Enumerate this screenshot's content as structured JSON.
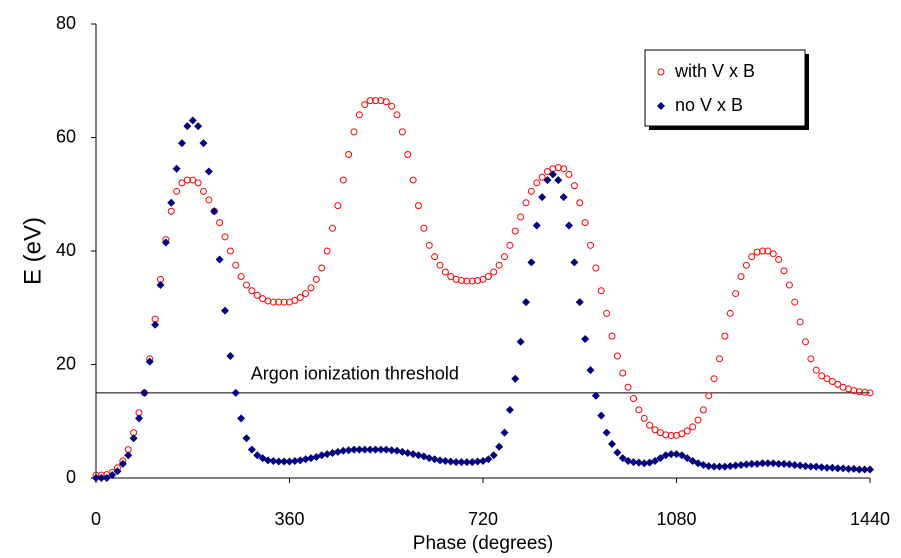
{
  "chart_data": {
    "type": "scatter",
    "xlabel": "Phase (degrees)",
    "ylabel": "E (eV)",
    "xlim": [
      0,
      1440
    ],
    "xticks": [
      0,
      360,
      720,
      1080,
      1440
    ],
    "ylim": [
      0,
      80
    ],
    "yticks": [
      0,
      20,
      40,
      60,
      80
    ],
    "legend": "upper right",
    "threshold": {
      "value": 15,
      "label": "Argon ionization threshold"
    },
    "x": [
      0,
      10,
      20,
      30,
      40,
      50,
      60,
      70,
      80,
      90,
      100,
      110,
      120,
      130,
      140,
      150,
      160,
      170,
      180,
      190,
      200,
      210,
      220,
      230,
      240,
      250,
      260,
      270,
      280,
      290,
      300,
      310,
      320,
      330,
      340,
      350,
      360,
      370,
      380,
      390,
      400,
      410,
      420,
      430,
      440,
      450,
      460,
      470,
      480,
      490,
      500,
      510,
      520,
      530,
      540,
      550,
      560,
      570,
      580,
      590,
      600,
      610,
      620,
      630,
      640,
      650,
      660,
      670,
      680,
      690,
      700,
      710,
      720,
      730,
      740,
      750,
      760,
      770,
      780,
      790,
      800,
      810,
      820,
      830,
      840,
      850,
      860,
      870,
      880,
      890,
      900,
      910,
      920,
      930,
      940,
      950,
      960,
      970,
      980,
      990,
      1000,
      1010,
      1020,
      1030,
      1040,
      1050,
      1060,
      1070,
      1080,
      1090,
      1100,
      1110,
      1120,
      1130,
      1140,
      1150,
      1160,
      1170,
      1180,
      1190,
      1200,
      1210,
      1220,
      1230,
      1240,
      1250,
      1260,
      1270,
      1280,
      1290,
      1300,
      1310,
      1320,
      1330,
      1340,
      1350,
      1360,
      1370,
      1380,
      1390,
      1400,
      1410,
      1420,
      1430,
      1440
    ],
    "series": [
      {
        "name": "with V x B",
        "color": "#ff0000",
        "marker": "circle-open",
        "values": [
          0.5,
          0.5,
          0.6,
          1,
          1.8,
          3,
          5,
          8,
          11.5,
          15,
          21,
          28,
          35,
          42,
          47,
          50.5,
          52,
          52.5,
          52.5,
          52,
          50.5,
          49,
          47,
          45,
          42.5,
          40,
          37.5,
          35.5,
          34,
          33,
          32.2,
          31.6,
          31.2,
          31,
          31,
          31,
          31,
          31.3,
          31.8,
          32.5,
          33.5,
          35,
          37,
          40,
          44,
          48,
          52.5,
          57,
          61,
          64,
          65.8,
          66.5,
          66.5,
          66.5,
          66.3,
          65.5,
          64,
          61,
          57,
          52.5,
          48,
          44,
          41,
          39,
          37.5,
          36.3,
          35.5,
          35,
          34.8,
          34.7,
          34.7,
          34.8,
          35,
          35.5,
          36.3,
          37.5,
          39,
          41,
          43.5,
          46,
          48.5,
          50.5,
          52,
          53,
          54,
          54.5,
          54.7,
          54.5,
          53.5,
          51.5,
          48.5,
          45,
          41,
          37,
          33,
          29,
          25,
          21.5,
          18.5,
          16,
          14,
          12,
          10.5,
          9.3,
          8.5,
          8,
          7.6,
          7.5,
          7.5,
          7.8,
          8.3,
          9,
          10.2,
          12,
          14.5,
          17.5,
          21,
          25,
          29,
          32.5,
          35.5,
          37.5,
          39,
          39.8,
          40,
          40,
          39.5,
          38.5,
          36.5,
          34,
          31,
          27.5,
          24,
          21,
          19,
          18,
          17.5,
          17,
          16.5,
          16,
          15.7,
          15.4,
          15.2,
          15.1,
          15
        ]
      },
      {
        "name": "no V x B",
        "color": "#000080",
        "marker": "diamond",
        "values": [
          0,
          0,
          0,
          0.5,
          1.2,
          2.5,
          4,
          7,
          10.5,
          15,
          20.5,
          27,
          34,
          41.5,
          48.5,
          54.5,
          59,
          62,
          63,
          62,
          59,
          54,
          47,
          38.5,
          29.5,
          21.5,
          15,
          10.5,
          7,
          5,
          4,
          3.5,
          3.1,
          3,
          2.9,
          2.9,
          2.9,
          3,
          3.1,
          3.3,
          3.5,
          3.7,
          4,
          4.2,
          4.4,
          4.6,
          4.8,
          4.9,
          5,
          5,
          5,
          5,
          5,
          5,
          5,
          4.9,
          4.8,
          4.6,
          4.4,
          4.2,
          4,
          3.8,
          3.5,
          3.3,
          3.1,
          3,
          2.9,
          2.8,
          2.8,
          2.8,
          2.8,
          2.9,
          3,
          3.3,
          4,
          5.5,
          8,
          12,
          17.5,
          24,
          31,
          38,
          44.5,
          49.5,
          52.5,
          53.5,
          52.5,
          49.5,
          44.5,
          38,
          31,
          24.5,
          19,
          14.5,
          11,
          8,
          6,
          4.5,
          3.5,
          3,
          2.8,
          2.7,
          2.6,
          2.7,
          3,
          3.5,
          4,
          4.2,
          4.2,
          4,
          3.5,
          3,
          2.6,
          2.3,
          2.1,
          2,
          2,
          2,
          2.1,
          2.2,
          2.3,
          2.4,
          2.5,
          2.5,
          2.6,
          2.6,
          2.6,
          2.5,
          2.5,
          2.4,
          2.3,
          2.2,
          2.1,
          2,
          2,
          1.9,
          1.8,
          1.8,
          1.7,
          1.7,
          1.6,
          1.6,
          1.5,
          1.5,
          1.5
        ]
      }
    ]
  }
}
